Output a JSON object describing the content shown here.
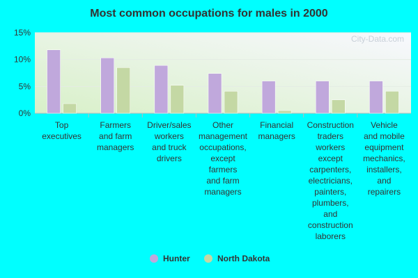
{
  "chart_data": {
    "type": "bar",
    "title": "Most common occupations for males in 2000",
    "watermark": "City-Data.com",
    "categories": [
      "Top\nexecutives",
      "Farmers\nand farm\nmanagers",
      "Driver/sales\nworkers\nand truck\ndrivers",
      "Other\nmanagement\noccupations,\nexcept\nfarmers\nand farm\nmanagers",
      "Financial\nmanagers",
      "Construction\ntraders\nworkers\nexcept\ncarpenters,\nelectricians,\npainters,\nplumbers,\nand\nconstruction\nlaborers",
      "Vehicle\nand mobile\nequipment\nmechanics,\ninstallers,\nand\nrepairers"
    ],
    "series": [
      {
        "name": "Hunter",
        "color": "#c0a8dc",
        "values": [
          11.8,
          10.3,
          8.9,
          7.4,
          6.0,
          6.0,
          6.0
        ]
      },
      {
        "name": "North Dakota",
        "color": "#c4d8a4",
        "values": [
          1.8,
          8.5,
          5.2,
          4.1,
          0.5,
          2.5,
          4.1
        ]
      }
    ],
    "ylim": [
      0,
      15
    ],
    "yticks": [
      {
        "value": 0,
        "label": "0%"
      },
      {
        "value": 5,
        "label": "5%"
      },
      {
        "value": 10,
        "label": "10%"
      },
      {
        "value": 15,
        "label": "15%"
      }
    ],
    "grid": true
  }
}
